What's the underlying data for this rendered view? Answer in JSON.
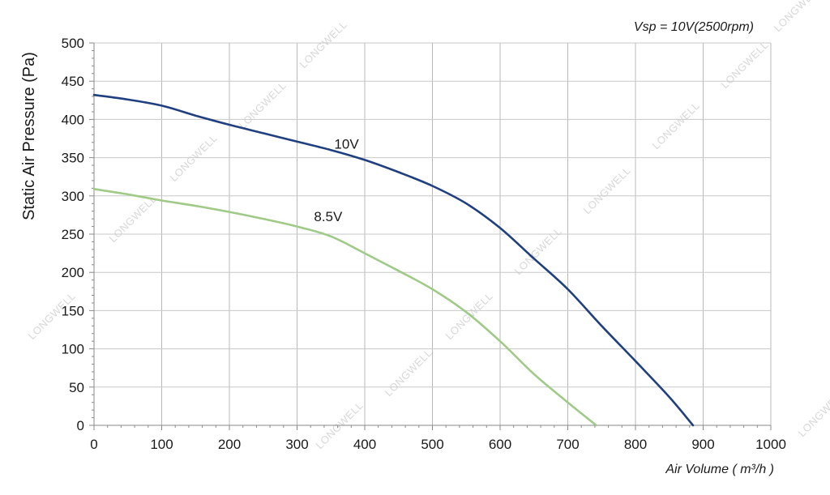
{
  "chart_data": {
    "type": "line",
    "annotation": "Vsp = 10V(2500rpm)",
    "xlabel": "Air Volume ( m³/h )",
    "ylabel": "Static Air Pressure  (Pa)",
    "xlim": [
      0,
      1000
    ],
    "ylim": [
      0,
      500
    ],
    "x_ticks": [
      "0",
      "100",
      "200",
      "300",
      "400",
      "500",
      "600",
      "700",
      "800",
      "900",
      "1000"
    ],
    "y_ticks": [
      "0",
      "50",
      "100",
      "150",
      "200",
      "250",
      "300",
      "350",
      "400",
      "450",
      "500"
    ],
    "grid": true,
    "watermark": "LONGWELL",
    "series": [
      {
        "name": "10V",
        "color": "#1f3f7f",
        "x": [
          0,
          50,
          100,
          150,
          200,
          250,
          300,
          350,
          400,
          450,
          500,
          550,
          600,
          650,
          700,
          750,
          800,
          850,
          885
        ],
        "y": [
          432,
          426,
          418,
          405,
          393,
          382,
          371,
          360,
          347,
          331,
          313,
          290,
          258,
          218,
          178,
          130,
          84,
          37,
          0
        ]
      },
      {
        "name": "8.5V",
        "color": "#9fca87",
        "x": [
          0,
          50,
          100,
          150,
          200,
          250,
          300,
          350,
          400,
          450,
          500,
          550,
          600,
          650,
          700,
          742
        ],
        "y": [
          309,
          302,
          294,
          287,
          279,
          270,
          260,
          247,
          225,
          202,
          178,
          148,
          110,
          67,
          30,
          0
        ]
      }
    ]
  }
}
